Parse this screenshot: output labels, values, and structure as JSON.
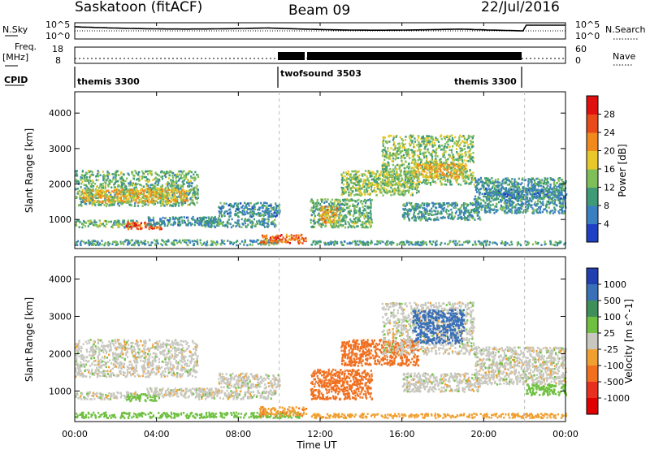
{
  "header": {
    "radar_label": "Saskatoon (fitACF)",
    "beam_label": "Beam 09",
    "date_label": "22/Jul/2016"
  },
  "noise_panel": {
    "left_label": "N.Sky",
    "left_ticks": [
      "10^5",
      "10^0"
    ],
    "right_label": "N.Search",
    "right_ticks": [
      "10^5",
      "10^0"
    ]
  },
  "freq_panel": {
    "left_label_1": "Freq.",
    "left_label_2": "[MHz]",
    "left_ticks": [
      "18",
      "8"
    ],
    "right_label": "Nave",
    "right_ticks": [
      "60",
      "0"
    ]
  },
  "cpid_panel": {
    "label": "CPID",
    "segments": [
      "themis 3300",
      "twofsound 3503",
      "themis 3300"
    ]
  },
  "chart_data": [
    {
      "type": "heatmap",
      "title": "",
      "xlabel": "Time UT",
      "ylabel": "Slant Range [km]",
      "xticks": [
        "00:00",
        "04:00",
        "08:00",
        "12:00",
        "16:00",
        "20:00",
        "00:00"
      ],
      "yticks": [
        "1000",
        "2000",
        "3000",
        "4000"
      ],
      "xlim": [
        0,
        24
      ],
      "ylim": [
        180,
        4600
      ],
      "colorbar_label": "Power [dB]",
      "colorbar_ticks": [
        "4",
        "8",
        "12",
        "16",
        "20",
        "24",
        "28"
      ],
      "colorbar_colors": [
        "#1f3fc4",
        "#3a7fc0",
        "#3f9a78",
        "#7fbf5a",
        "#e8c82a",
        "#f08a1e",
        "#e84a1a",
        "#e01010"
      ],
      "scatter_regions": [
        {
          "t": [
            0.0,
            6.0
          ],
          "range": [
            1400,
            2400
          ],
          "level": 12
        },
        {
          "t": [
            0.3,
            5.5
          ],
          "range": [
            1500,
            1900
          ],
          "level": 19
        },
        {
          "t": [
            0.0,
            3.0
          ],
          "range": [
            800,
            1000
          ],
          "level": 12
        },
        {
          "t": [
            2.5,
            4.2
          ],
          "range": [
            750,
            950
          ],
          "level": 26
        },
        {
          "t": [
            3.5,
            7.0
          ],
          "range": [
            850,
            1100
          ],
          "level": 8
        },
        {
          "t": [
            6.0,
            9.8
          ],
          "range": [
            800,
            1050
          ],
          "level": 9
        },
        {
          "t": [
            0.0,
            10.0
          ],
          "range": [
            300,
            450
          ],
          "level": 10
        },
        {
          "t": [
            9.0,
            11.3
          ],
          "range": [
            350,
            600
          ],
          "level": 24
        },
        {
          "t": [
            11.5,
            24.0
          ],
          "range": [
            300,
            420
          ],
          "level": 10
        },
        {
          "t": [
            11.5,
            14.5
          ],
          "range": [
            800,
            1600
          ],
          "level": 12
        },
        {
          "t": [
            12.0,
            12.8
          ],
          "range": [
            900,
            1400
          ],
          "level": 20
        },
        {
          "t": [
            13.0,
            16.8
          ],
          "range": [
            1700,
            2400
          ],
          "level": 14
        },
        {
          "t": [
            15.0,
            19.5
          ],
          "range": [
            2000,
            3400
          ],
          "level": 14
        },
        {
          "t": [
            16.5,
            19.0
          ],
          "range": [
            2200,
            2600
          ],
          "level": 19
        },
        {
          "t": [
            16.0,
            19.8
          ],
          "range": [
            1000,
            1500
          ],
          "level": 9
        },
        {
          "t": [
            19.5,
            24.0
          ],
          "range": [
            1200,
            2200
          ],
          "level": 9
        },
        {
          "t": [
            20.0,
            24.0
          ],
          "range": [
            1600,
            1900
          ],
          "level": 8
        },
        {
          "t": [
            7.0,
            10.0
          ],
          "range": [
            1100,
            1500
          ],
          "level": 8
        }
      ]
    },
    {
      "type": "heatmap",
      "title": "",
      "xlabel": "Time UT",
      "ylabel": "Slant Range [km]",
      "xticks": [
        "00:00",
        "04:00",
        "08:00",
        "12:00",
        "16:00",
        "20:00",
        "00:00"
      ],
      "yticks": [
        "1000",
        "2000",
        "3000",
        "4000"
      ],
      "xlim": [
        0,
        24
      ],
      "ylim": [
        180,
        4600
      ],
      "colorbar_label": "Velocity [m s^-1]",
      "colorbar_ticks": [
        "1000",
        "500",
        "100",
        "25",
        "-25",
        "-100",
        "-500",
        "-1000"
      ],
      "colorbar_colors": [
        "#2040b0",
        "#3a70b8",
        "#3f8f5a",
        "#6fc040",
        "#c8c8c0",
        "#f0a030",
        "#f07020",
        "#e83020",
        "#e00000"
      ],
      "scatter_regions": [
        {
          "t": [
            0.0,
            6.0
          ],
          "range": [
            1400,
            2400
          ],
          "velocity": 0
        },
        {
          "t": [
            0.0,
            3.0
          ],
          "range": [
            800,
            1000
          ],
          "velocity": 0
        },
        {
          "t": [
            2.5,
            4.2
          ],
          "range": [
            750,
            950
          ],
          "velocity": 60
        },
        {
          "t": [
            3.5,
            7.0
          ],
          "range": [
            850,
            1100
          ],
          "velocity": 0
        },
        {
          "t": [
            6.0,
            9.8
          ],
          "range": [
            800,
            1050
          ],
          "velocity": 0
        },
        {
          "t": [
            0.0,
            11.0
          ],
          "range": [
            300,
            450
          ],
          "velocity": 60
        },
        {
          "t": [
            9.0,
            11.3
          ],
          "range": [
            350,
            600
          ],
          "velocity": -80
        },
        {
          "t": [
            11.5,
            24.0
          ],
          "range": [
            300,
            420
          ],
          "velocity": -60
        },
        {
          "t": [
            11.5,
            14.5
          ],
          "range": [
            800,
            1600
          ],
          "velocity": -300
        },
        {
          "t": [
            13.0,
            16.8
          ],
          "range": [
            1700,
            2400
          ],
          "velocity": -300
        },
        {
          "t": [
            15.0,
            19.5
          ],
          "range": [
            2000,
            3400
          ],
          "velocity": 0
        },
        {
          "t": [
            16.5,
            19.0
          ],
          "range": [
            2300,
            3200
          ],
          "velocity": 600
        },
        {
          "t": [
            16.0,
            19.8
          ],
          "range": [
            1000,
            1500
          ],
          "velocity": 0
        },
        {
          "t": [
            19.5,
            24.0
          ],
          "range": [
            1200,
            2200
          ],
          "velocity": 0
        },
        {
          "t": [
            22.0,
            24.0
          ],
          "range": [
            900,
            1200
          ],
          "velocity": 60
        },
        {
          "t": [
            7.0,
            10.0
          ],
          "range": [
            1100,
            1500
          ],
          "velocity": 0
        }
      ]
    }
  ]
}
